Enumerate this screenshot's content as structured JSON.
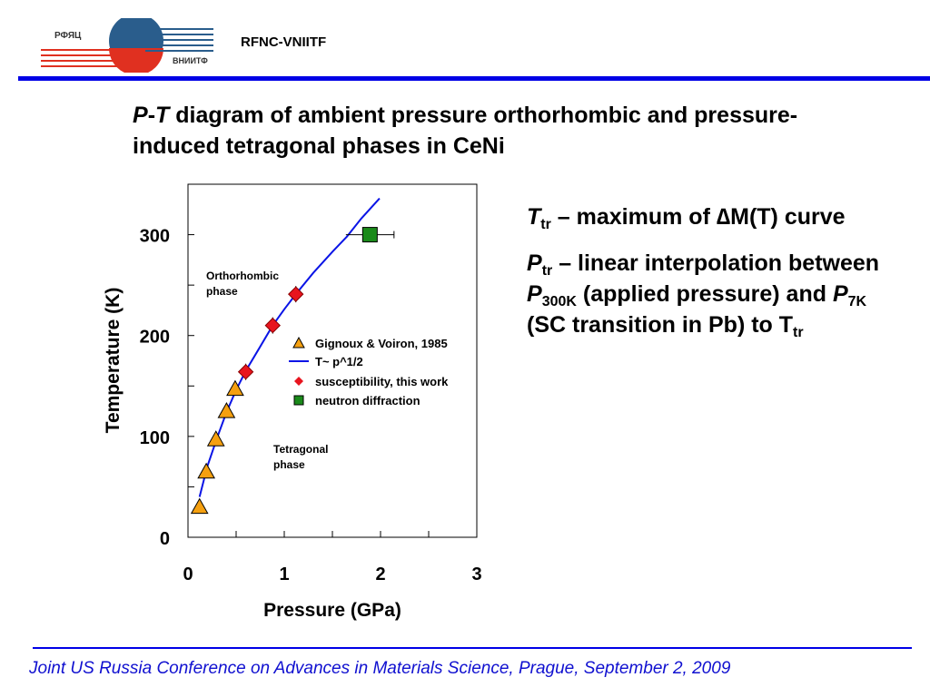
{
  "header": {
    "org": "RFNC-VNIITF",
    "logo_text_top": "РФЯЦ",
    "logo_text_bottom": "ВНИИТФ"
  },
  "title": {
    "part1": "P",
    "dash": "-",
    "part2": "T",
    "rest": " diagram of ambient pressure orthorhombic and pressure-induced tetragonal phases in CeNi"
  },
  "notes": {
    "t_sym": "T",
    "t_sub": "tr",
    "t_text": " – maximum of ∆M(T) curve",
    "p_sym": "P",
    "p_sub": "tr",
    "p_text1": " – linear interpolation between ",
    "p300": "P",
    "p300_sub": "300K",
    "p_text2": " (applied pressure) and ",
    "p7": "P",
    "p7_sub": "7K",
    "p_text3": " (SC transition in Pb) to T",
    "p_end_sub": "tr"
  },
  "footer": "Joint US Russia Conference on Advances in Materials Science, Prague, September 2, 2009",
  "chart_data": {
    "type": "scatter",
    "xlabel": "Pressure (GPa)",
    "ylabel": "Temperature (K)",
    "xlim": [
      0,
      3
    ],
    "ylim": [
      0,
      350
    ],
    "xticks": [
      "0",
      "1",
      "2",
      "3"
    ],
    "yticks": [
      "0",
      "100",
      "200",
      "300"
    ],
    "legend_position": "center-right",
    "annotations": [
      "Orthorhombic",
      "phase",
      "Tetragonal",
      "phase"
    ],
    "series": [
      {
        "name": "Gignoux & Voiron, 1985",
        "marker": "triangle",
        "color": "#f5a010",
        "x": [
          0.12,
          0.19,
          0.29,
          0.4,
          0.49
        ],
        "y": [
          30,
          65,
          97,
          125,
          147
        ]
      },
      {
        "name": "T~ p^1/2",
        "marker": "line",
        "color": "#0a14e6",
        "x": [
          0.12,
          0.2,
          0.3,
          0.4,
          0.5,
          0.6,
          0.75,
          0.88,
          1.0,
          1.12,
          1.3,
          1.5,
          1.65,
          1.8,
          1.99
        ],
        "y": [
          40,
          70,
          98,
          124,
          146,
          165,
          189,
          210,
          226,
          241,
          262,
          283,
          298,
          316,
          336
        ]
      },
      {
        "name": "susceptibility, this work",
        "marker": "diamond",
        "color": "#e8141e",
        "x": [
          0.6,
          0.88,
          1.12
        ],
        "y": [
          164,
          210,
          241
        ]
      },
      {
        "name": "neutron diffraction",
        "marker": "square",
        "color": "#1a8a1a",
        "x": [
          1.89
        ],
        "y": [
          300
        ],
        "xerr": [
          0.25
        ]
      }
    ]
  }
}
